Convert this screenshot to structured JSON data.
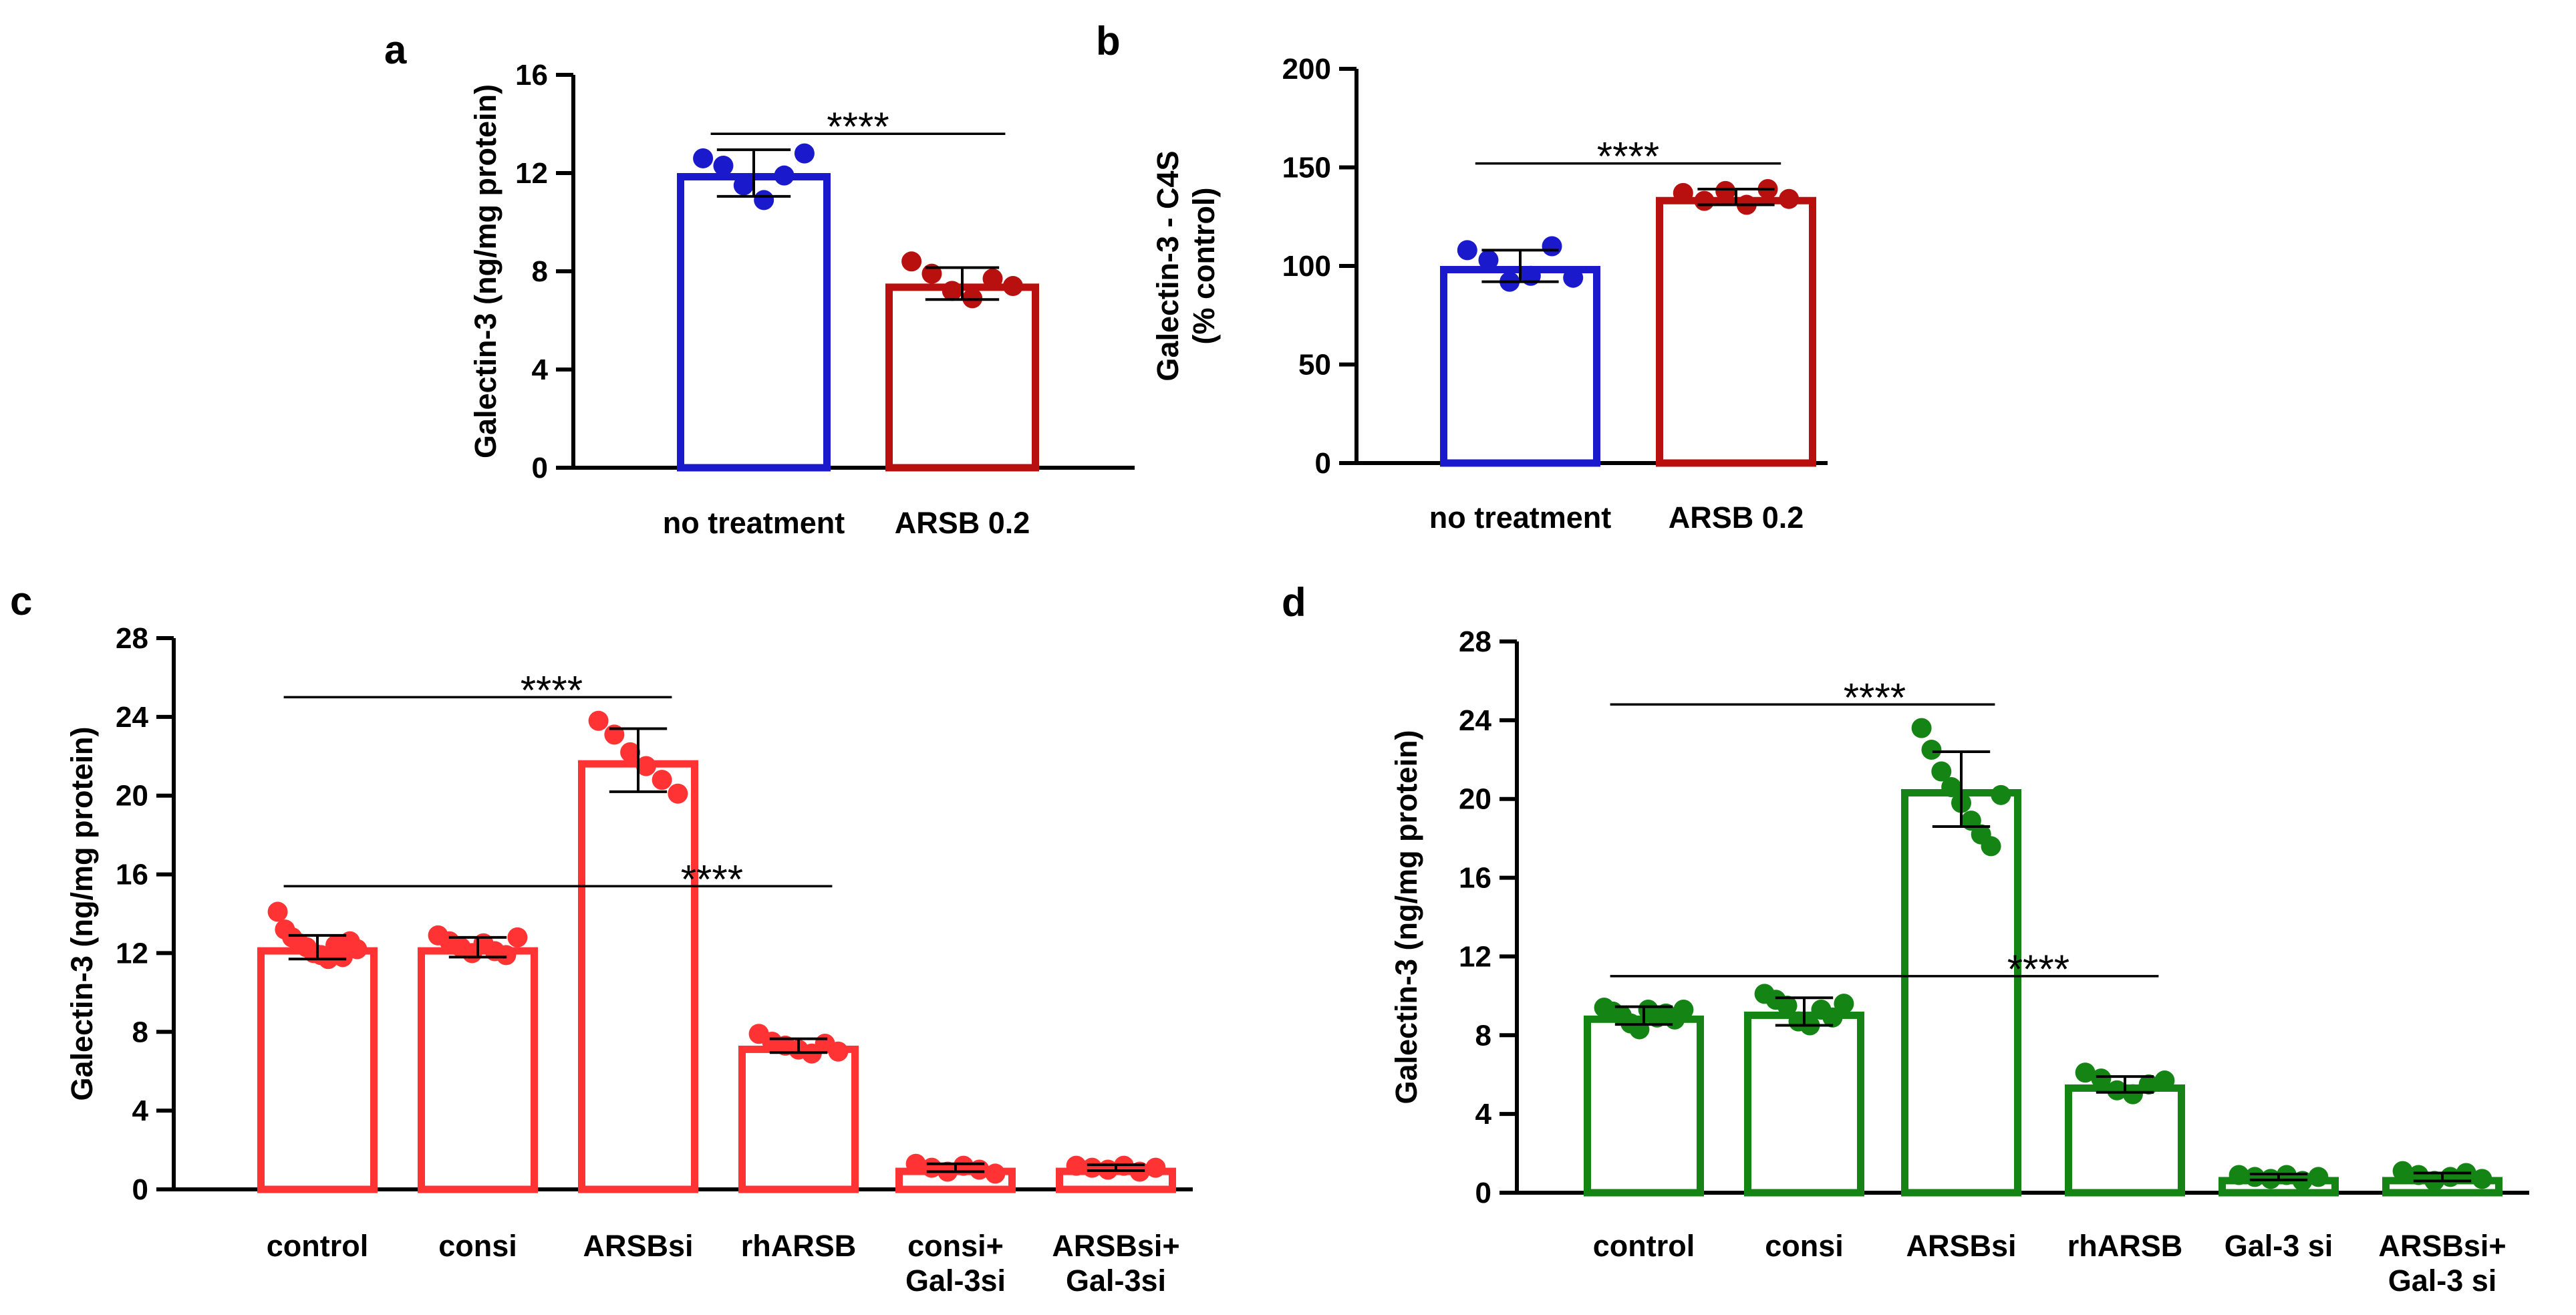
{
  "chart_data": [
    {
      "panel": "a",
      "type": "bar",
      "ylabel": [
        "Galectin-3 (ng/mg protein)"
      ],
      "ylim": [
        0,
        16
      ],
      "yticks": [
        0,
        4,
        8,
        12,
        16
      ],
      "categories": [
        [
          "no treatment"
        ],
        [
          "ARSB 0.2"
        ]
      ],
      "values": [
        12.0,
        7.5
      ],
      "errors": [
        0.95,
        0.65
      ],
      "colors": [
        "#1a1acc",
        "#b80f0f"
      ],
      "points": [
        [
          12.6,
          12.3,
          11.5,
          10.9,
          11.9,
          12.8
        ],
        [
          8.4,
          7.9,
          7.2,
          6.9,
          7.7,
          7.4
        ]
      ],
      "significance": [
        {
          "from": 0,
          "to": 1,
          "label": "****",
          "y": 13.6
        }
      ]
    },
    {
      "panel": "b",
      "type": "bar",
      "ylabel": [
        "Galectin-3 - C4S",
        "(% control)"
      ],
      "ylim": [
        0,
        200
      ],
      "yticks": [
        0,
        50,
        100,
        150,
        200
      ],
      "categories": [
        [
          "no treatment"
        ],
        [
          "ARSB 0.2"
        ]
      ],
      "values": [
        100,
        135
      ],
      "errors": [
        8,
        4
      ],
      "colors": [
        "#1a1acc",
        "#b80f0f"
      ],
      "points": [
        [
          108,
          103,
          92,
          95,
          110,
          94
        ],
        [
          137,
          133,
          138,
          131,
          139,
          134
        ]
      ],
      "significance": [
        {
          "from": 0,
          "to": 1,
          "label": "****",
          "y": 152
        }
      ]
    },
    {
      "panel": "c",
      "type": "bar",
      "ylabel": [
        "Galectin-3 (ng/mg protein)"
      ],
      "ylim": [
        0,
        28
      ],
      "yticks": [
        0,
        4,
        8,
        12,
        16,
        20,
        24,
        28
      ],
      "categories": [
        [
          "control"
        ],
        [
          "consi"
        ],
        [
          "ARSBsi"
        ],
        [
          "rhARSB"
        ],
        [
          "consi+",
          "Gal-3si"
        ],
        [
          "ARSBsi+",
          "Gal-3si"
        ]
      ],
      "values": [
        12.3,
        12.3,
        21.8,
        7.3,
        1.1,
        1.1
      ],
      "errors": [
        0.6,
        0.5,
        1.6,
        0.35,
        0.2,
        0.15
      ],
      "colors": [
        "#ff3333",
        "#ff3333",
        "#ff3333",
        "#ff3333",
        "#ff3333",
        "#ff3333"
      ],
      "points": [
        [
          14.1,
          13.2,
          12.8,
          12.5,
          12.3,
          12.0,
          11.9,
          11.7,
          12.4,
          11.8,
          12.6,
          12.2
        ],
        [
          12.9,
          12.6,
          12.3,
          12.0,
          12.5,
          12.1,
          11.9,
          12.8
        ],
        [
          23.8,
          23.1,
          22.2,
          21.5,
          20.8,
          20.1
        ],
        [
          7.9,
          7.5,
          7.3,
          7.1,
          6.9,
          7.4,
          7.0
        ],
        [
          1.3,
          1.1,
          0.9,
          1.2,
          1.0,
          0.8
        ],
        [
          1.2,
          1.1,
          1.0,
          1.2,
          0.9,
          1.1
        ]
      ],
      "significance": [
        {
          "from": 0,
          "to": 2,
          "label": "****",
          "y": 25.0
        },
        {
          "from": 0,
          "to": 3,
          "label": "****",
          "y": 15.4
        }
      ]
    },
    {
      "panel": "d",
      "type": "bar",
      "ylabel": [
        "Galectin-3 (ng/mg protein)"
      ],
      "ylim": [
        0,
        28
      ],
      "yticks": [
        0,
        4,
        8,
        12,
        16,
        20,
        24,
        28
      ],
      "categories": [
        [
          "control"
        ],
        [
          "consi"
        ],
        [
          "ARSBsi"
        ],
        [
          "rhARSB"
        ],
        [
          "Gal-3 si"
        ],
        [
          "ARSBsi+",
          "Gal-3 si"
        ]
      ],
      "values": [
        9.0,
        9.2,
        20.5,
        5.5,
        0.8,
        0.8
      ],
      "errors": [
        0.45,
        0.7,
        1.9,
        0.4,
        0.15,
        0.2
      ],
      "colors": [
        "#148414",
        "#148414",
        "#148414",
        "#148414",
        "#148414",
        "#148414"
      ],
      "points": [
        [
          9.4,
          9.2,
          9.0,
          8.6,
          8.3,
          9.3,
          8.9,
          9.1,
          8.8,
          9.3
        ],
        [
          10.1,
          9.8,
          9.5,
          8.7,
          8.5,
          9.3,
          8.9,
          9.6
        ],
        [
          23.6,
          22.5,
          21.4,
          20.6,
          19.8,
          18.9,
          18.2,
          17.6,
          20.2
        ],
        [
          6.1,
          5.8,
          5.2,
          5.0,
          5.5,
          5.7
        ],
        [
          0.9,
          0.8,
          0.7,
          0.9,
          0.6,
          0.8
        ],
        [
          1.1,
          0.9,
          0.6,
          0.8,
          1.0,
          0.7
        ]
      ],
      "significance": [
        {
          "from": 0,
          "to": 2,
          "label": "****",
          "y": 24.8
        },
        {
          "from": 0,
          "to": 3,
          "label": "****",
          "y": 11.0
        }
      ]
    }
  ]
}
